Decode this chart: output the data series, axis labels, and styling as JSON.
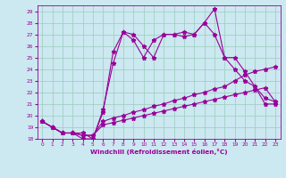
{
  "xlabel": "Windchill (Refroidissement éolien,°C)",
  "background_color": "#cce8f0",
  "line_color": "#990099",
  "grid_color": "#99ccbb",
  "xlim": [
    -0.5,
    23.5
  ],
  "ylim": [
    18,
    29.5
  ],
  "xticks": [
    0,
    1,
    2,
    3,
    4,
    5,
    6,
    7,
    8,
    9,
    10,
    11,
    12,
    13,
    14,
    15,
    16,
    17,
    18,
    19,
    20,
    21,
    22,
    23
  ],
  "yticks": [
    18,
    19,
    20,
    21,
    22,
    23,
    24,
    25,
    26,
    27,
    28,
    29
  ],
  "series": [
    {
      "x": [
        0,
        1,
        2,
        3,
        4,
        5,
        6,
        7,
        8,
        9,
        10,
        11,
        12,
        13,
        14,
        15,
        16,
        17,
        18,
        19,
        20,
        21,
        22,
        23
      ],
      "y": [
        19.5,
        19.0,
        18.5,
        18.5,
        18.5,
        18.0,
        20.5,
        24.5,
        27.2,
        27.0,
        26.0,
        25.0,
        27.0,
        27.0,
        27.2,
        27.0,
        28.0,
        29.2,
        25.0,
        25.0,
        23.8,
        22.5,
        21.0,
        21.0
      ]
    },
    {
      "x": [
        0,
        1,
        2,
        3,
        4,
        5,
        6,
        7,
        8,
        9,
        10,
        11,
        12,
        13,
        14,
        15,
        16,
        17,
        18,
        19,
        20,
        21,
        22,
        23
      ],
      "y": [
        19.5,
        19.0,
        18.5,
        18.5,
        18.0,
        18.0,
        20.3,
        25.5,
        27.2,
        26.5,
        25.0,
        26.5,
        27.0,
        27.0,
        26.8,
        27.0,
        28.0,
        27.0,
        25.0,
        24.0,
        23.0,
        22.5,
        21.5,
        21.2
      ]
    },
    {
      "x": [
        0,
        1,
        2,
        3,
        4,
        5,
        6,
        7,
        8,
        9,
        10,
        11,
        12,
        13,
        14,
        15,
        16,
        17,
        18,
        19,
        20,
        21,
        22,
        23
      ],
      "y": [
        19.5,
        19.0,
        18.5,
        18.5,
        18.3,
        18.3,
        19.5,
        19.8,
        20.0,
        20.3,
        20.5,
        20.8,
        21.0,
        21.3,
        21.5,
        21.8,
        22.0,
        22.3,
        22.5,
        23.0,
        23.5,
        23.8,
        24.0,
        24.2
      ]
    },
    {
      "x": [
        0,
        1,
        2,
        3,
        4,
        5,
        6,
        7,
        8,
        9,
        10,
        11,
        12,
        13,
        14,
        15,
        16,
        17,
        18,
        19,
        20,
        21,
        22,
        23
      ],
      "y": [
        19.5,
        19.0,
        18.5,
        18.5,
        18.3,
        18.3,
        19.2,
        19.4,
        19.6,
        19.8,
        20.0,
        20.2,
        20.4,
        20.6,
        20.8,
        21.0,
        21.2,
        21.4,
        21.6,
        21.8,
        22.0,
        22.2,
        22.4,
        21.2
      ]
    }
  ]
}
